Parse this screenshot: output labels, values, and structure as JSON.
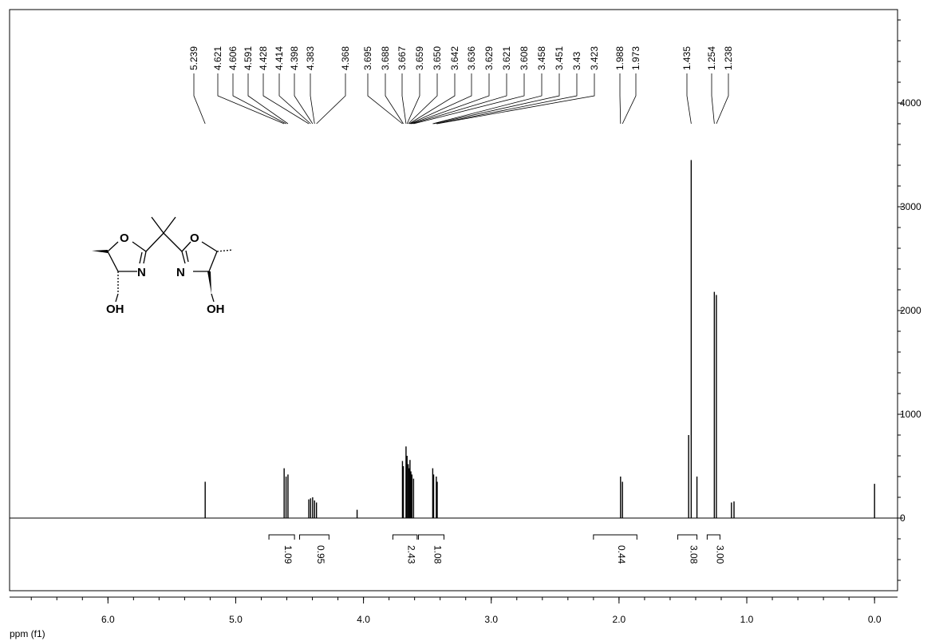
{
  "chart_data": {
    "type": "nmr",
    "x_label": "ppm (f1)",
    "xlim": [
      6.77,
      -0.18
    ],
    "xticks": [
      {
        "value": 6,
        "label": "6.0"
      },
      {
        "value": 5,
        "label": "5.0"
      },
      {
        "value": 4,
        "label": "4.0"
      },
      {
        "value": 3,
        "label": "3.0"
      },
      {
        "value": 2,
        "label": "2.0"
      },
      {
        "value": 1,
        "label": "1.0"
      },
      {
        "value": 0,
        "label": "0.0"
      }
    ],
    "ylim": [
      -700,
      4900
    ],
    "yticks": [
      0,
      1000,
      2000,
      3000,
      4000
    ],
    "color": "#000000",
    "peaks": {
      "x": [
        5.239,
        4.621,
        4.606,
        4.591,
        4.428,
        4.414,
        4.398,
        4.383,
        4.368,
        4.05,
        3.695,
        3.688,
        3.667,
        3.659,
        3.65,
        3.642,
        3.636,
        3.629,
        3.621,
        3.608,
        3.458,
        3.451,
        3.43,
        3.423,
        1.988,
        1.973,
        1.455,
        1.435,
        1.39,
        1.254,
        1.238,
        1.12,
        1.1,
        0.0
      ],
      "values": [
        350,
        480,
        400,
        420,
        180,
        190,
        200,
        170,
        150,
        80,
        550,
        500,
        690,
        600,
        520,
        480,
        560,
        450,
        420,
        380,
        480,
        420,
        400,
        350,
        400,
        350,
        800,
        3450,
        400,
        2180,
        2150,
        150,
        160,
        330
      ]
    },
    "peak_labels": [
      5.239,
      4.621,
      4.606,
      4.591,
      4.428,
      4.414,
      4.398,
      4.383,
      4.368,
      3.695,
      3.688,
      3.667,
      3.659,
      {
        "value": 3.65,
        "label": "3.650"
      },
      3.642,
      3.636,
      3.629,
      3.621,
      3.608,
      3.458,
      3.451,
      3.43,
      3.423,
      1.988,
      1.973,
      1.435,
      1.254,
      1.238
    ],
    "integrals": [
      {
        "range": [
          4.74,
          4.54
        ],
        "value": 1.09
      },
      {
        "range": [
          4.5,
          4.27
        ],
        "value": 0.95
      },
      {
        "range": [
          3.77,
          3.58
        ],
        "value": 2.43
      },
      {
        "range": [
          3.57,
          3.37
        ],
        "value": 1.08
      },
      {
        "range": [
          2.2,
          1.86
        ],
        "value": 0.44
      },
      {
        "range": [
          1.54,
          1.39
        ],
        "value": 3.08
      },
      {
        "range": [
          1.31,
          1.21
        ],
        "value": {
          "value": 3,
          "label": "3.00"
        }
      }
    ]
  },
  "structure": {
    "atoms": [
      "O",
      "N",
      "OH",
      "O",
      "N",
      "OH"
    ]
  }
}
